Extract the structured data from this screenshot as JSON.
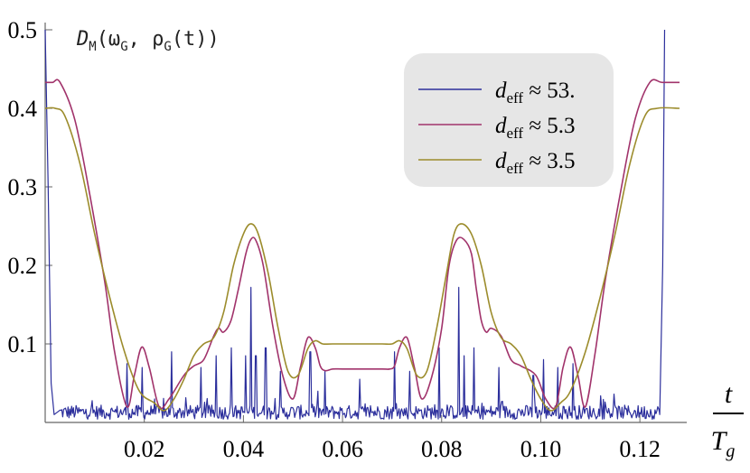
{
  "chart_data": {
    "type": "line",
    "xlabel_num": "t",
    "xlabel_den": "T",
    "xlabel_den_sub": "g",
    "ylabel": "D",
    "ylabel_sub": "M",
    "ylabel_rest": "(ω",
    "ylabel_sub2": "G",
    "ylabel_rest2": ", ρ",
    "ylabel_sub3": "G",
    "ylabel_rest3": "(t))",
    "xlim": [
      0,
      0.128
    ],
    "ylim": [
      0,
      0.5
    ],
    "x_ticks": [
      0.02,
      0.04,
      0.06,
      0.08,
      0.1,
      0.12
    ],
    "x_tick_labels": [
      "0.02",
      "0.04",
      "0.06",
      "0.08",
      "0.10",
      "0.12"
    ],
    "y_ticks": [
      0.1,
      0.2,
      0.3,
      0.4,
      0.5
    ],
    "y_tick_labels": [
      "0.1",
      "0.2",
      "0.3",
      "0.4",
      "0.5"
    ],
    "legend_placement": "top-right",
    "series": [
      {
        "name": "d_eff ≈ 53.",
        "name_main": "d",
        "name_sub": "eff",
        "name_rest": " ≈ 53.",
        "color": "#2c2f9c",
        "style": "noisy",
        "x": [
          0,
          0.0006,
          0.0012,
          0.0018,
          0.003,
          0.124,
          0.1246,
          0.125
        ],
        "y": [
          0.5,
          0.3,
          0.05,
          0.01,
          0.008,
          0.01,
          0.2,
          0.5
        ],
        "spikes_x": [
          0.0165,
          0.0195,
          0.0255,
          0.0315,
          0.0345,
          0.0375,
          0.0405,
          0.0415,
          0.0425,
          0.0445,
          0.0475,
          0.0535,
          0.0565,
          0.0635,
          0.0705,
          0.0735,
          0.0795,
          0.0835,
          0.0845,
          0.0865,
          0.0915,
          0.0985,
          0.1005,
          0.1035,
          0.1065
        ],
        "spikes_y": [
          0.075,
          0.07,
          0.09,
          0.07,
          0.085,
          0.095,
          0.085,
          0.172,
          0.085,
          0.095,
          0.065,
          0.09,
          0.065,
          0.055,
          0.09,
          0.065,
          0.095,
          0.172,
          0.085,
          0.095,
          0.07,
          0.06,
          0.08,
          0.07,
          0.075
        ]
      },
      {
        "name": "d_eff ≈ 5.3",
        "name_main": "d",
        "name_sub": "eff",
        "name_rest": " ≈ 5.3",
        "color": "#a1336b",
        "x": [
          0,
          0.0015,
          0.003,
          0.006,
          0.009,
          0.012,
          0.014,
          0.0165,
          0.018,
          0.0195,
          0.021,
          0.023,
          0.025,
          0.028,
          0.03,
          0.032,
          0.034,
          0.035,
          0.036,
          0.0375,
          0.039,
          0.0405,
          0.0415,
          0.0425,
          0.044,
          0.046,
          0.048,
          0.05,
          0.0515,
          0.053,
          0.0545,
          0.0555,
          0.0565,
          0.058,
          0.06,
          0.064,
          0.068,
          0.0695,
          0.0705,
          0.0715,
          0.073,
          0.0745,
          0.076,
          0.078,
          0.08,
          0.0815,
          0.083,
          0.0845,
          0.086,
          0.087,
          0.088,
          0.089,
          0.09,
          0.092,
          0.094,
          0.096,
          0.099,
          0.101,
          0.103,
          0.1045,
          0.106,
          0.1075,
          0.109,
          0.111,
          0.113,
          0.116,
          0.119,
          0.122,
          0.1245,
          0.128
        ],
        "y": [
          0.433,
          0.433,
          0.433,
          0.385,
          0.29,
          0.18,
          0.09,
          0.02,
          0.06,
          0.096,
          0.07,
          0.02,
          0.03,
          0.06,
          0.072,
          0.08,
          0.11,
          0.12,
          0.115,
          0.13,
          0.17,
          0.215,
          0.233,
          0.232,
          0.2,
          0.12,
          0.058,
          0.03,
          0.07,
          0.108,
          0.095,
          0.072,
          0.066,
          0.068,
          0.068,
          0.068,
          0.068,
          0.068,
          0.072,
          0.095,
          0.108,
          0.07,
          0.03,
          0.058,
          0.12,
          0.2,
          0.232,
          0.233,
          0.215,
          0.17,
          0.13,
          0.115,
          0.12,
          0.11,
          0.08,
          0.072,
          0.06,
          0.03,
          0.02,
          0.07,
          0.096,
          0.06,
          0.02,
          0.09,
          0.18,
          0.29,
          0.385,
          0.433,
          0.433,
          0.433
        ]
      },
      {
        "name": "d_eff ≈ 3.5",
        "name_main": "d",
        "name_sub": "eff",
        "name_rest": " ≈ 3.5",
        "color": "#9c8c2c",
        "x": [
          0,
          0.002,
          0.004,
          0.007,
          0.01,
          0.013,
          0.016,
          0.019,
          0.022,
          0.024,
          0.026,
          0.028,
          0.03,
          0.032,
          0.034,
          0.036,
          0.038,
          0.04,
          0.0415,
          0.043,
          0.045,
          0.047,
          0.049,
          0.051,
          0.053,
          0.0545,
          0.056,
          0.058,
          0.064,
          0.068,
          0.07,
          0.0715,
          0.073,
          0.075,
          0.077,
          0.079,
          0.081,
          0.0825,
          0.084,
          0.086,
          0.088,
          0.09,
          0.092,
          0.094,
          0.096,
          0.098,
          0.1,
          0.102,
          0.104,
          0.106,
          0.109,
          0.112,
          0.115,
          0.118,
          0.121,
          0.1235,
          0.128
        ],
        "y": [
          0.4,
          0.4,
          0.39,
          0.33,
          0.24,
          0.16,
          0.09,
          0.04,
          0.025,
          0.015,
          0.03,
          0.055,
          0.085,
          0.1,
          0.108,
          0.14,
          0.2,
          0.24,
          0.253,
          0.24,
          0.19,
          0.12,
          0.065,
          0.06,
          0.094,
          0.104,
          0.1,
          0.1,
          0.1,
          0.1,
          0.1,
          0.104,
          0.094,
          0.06,
          0.065,
          0.12,
          0.19,
          0.24,
          0.253,
          0.24,
          0.2,
          0.14,
          0.108,
          0.1,
          0.085,
          0.055,
          0.03,
          0.015,
          0.025,
          0.04,
          0.09,
          0.16,
          0.24,
          0.33,
          0.39,
          0.4,
          0.4
        ]
      }
    ]
  }
}
